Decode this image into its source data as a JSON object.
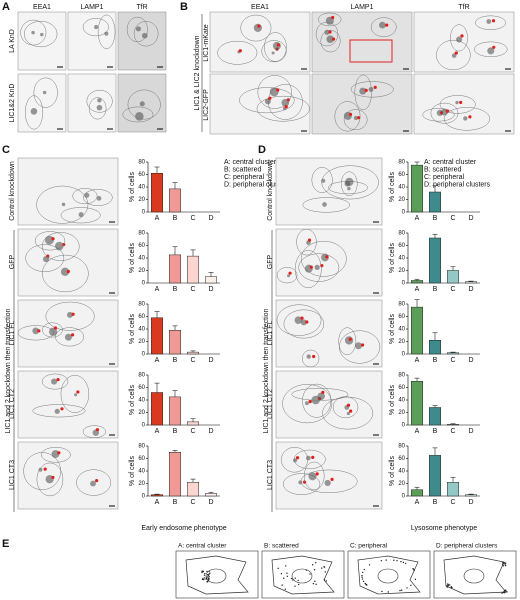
{
  "panels": {
    "a": {
      "label": "A",
      "columns": [
        "EEA1",
        "LAMP1",
        "TfR"
      ],
      "rows": [
        "LA KnD",
        "LIC1&2 KnD"
      ]
    },
    "b": {
      "label": "B",
      "columns": [
        "EEA1",
        "LAMP1",
        "TfR"
      ],
      "rows": [
        "LIC1-mKate",
        "LIC2-GFP"
      ],
      "group": "LIC1 & LIC2 knockdown"
    },
    "c": {
      "label": "C",
      "rows": [
        "Control knockdown",
        "GFP",
        "LIC1 FL",
        "LIC1 CT2",
        "LIC1 CT3"
      ],
      "group": "LIC1 and 2 knockdown then transfection",
      "legend": [
        "A: central cluster",
        "B: scattered",
        "C: peripheral",
        "D: peripheral clusters"
      ],
      "xlabel": "Early endosome phenotype"
    },
    "d": {
      "label": "D",
      "rows": [
        "Control knockdown",
        "GFP",
        "LIC1 FL",
        "LIC1 CT2",
        "LIC1 CT3"
      ],
      "group": "LIC1 and 2 knockdown then transfection",
      "legend": [
        "A: central cluster",
        "B: scattered",
        "C: peripheral",
        "D: peripheral clusters"
      ],
      "xlabel": "Lysosome phenotype"
    },
    "e": {
      "label": "E",
      "items": [
        "A: central cluster",
        "B: scattered",
        "C: peripheral",
        "D: peripheral clusters"
      ]
    }
  },
  "chart_data": [
    {
      "type": "bar",
      "ylabel": "% of cells",
      "categories": [
        "A",
        "B",
        "C",
        "D"
      ],
      "values": [
        62,
        37,
        0,
        0
      ],
      "errors": [
        10,
        10,
        0,
        0
      ],
      "colors": [
        "#d93a1f",
        "#ef9a96",
        "#fbd5d0",
        "#fdeeea"
      ],
      "ylim": [
        0,
        80
      ],
      "yticks": [
        0,
        20,
        40,
        60,
        80
      ]
    },
    {
      "type": "bar",
      "ylabel": "% of cells",
      "categories": [
        "A",
        "B",
        "C",
        "D"
      ],
      "values": [
        0,
        45,
        43,
        10
      ],
      "errors": [
        0,
        13,
        10,
        7
      ],
      "colors": [
        "#d93a1f",
        "#ef9a96",
        "#fbd5d0",
        "#fdeeea"
      ],
      "ylim": [
        0,
        80
      ],
      "yticks": [
        0,
        20,
        40,
        60,
        80
      ]
    },
    {
      "type": "bar",
      "ylabel": "% of cells",
      "categories": [
        "A",
        "B",
        "C",
        "D"
      ],
      "values": [
        58,
        38,
        3,
        0
      ],
      "errors": [
        10,
        7,
        2,
        0
      ],
      "colors": [
        "#d93a1f",
        "#ef9a96",
        "#fbd5d0",
        "#fdeeea"
      ],
      "ylim": [
        0,
        80
      ],
      "yticks": [
        0,
        20,
        40,
        60,
        80
      ]
    },
    {
      "type": "bar",
      "ylabel": "% of cells",
      "categories": [
        "A",
        "B",
        "C",
        "D"
      ],
      "values": [
        52,
        45,
        5,
        0
      ],
      "errors": [
        15,
        10,
        5,
        0
      ],
      "colors": [
        "#d93a1f",
        "#ef9a96",
        "#fbd5d0",
        "#fdeeea"
      ],
      "ylim": [
        0,
        80
      ],
      "yticks": [
        0,
        20,
        40,
        60,
        80
      ]
    },
    {
      "type": "bar",
      "ylabel": "% of cells",
      "categories": [
        "A",
        "B",
        "C",
        "D"
      ],
      "values": [
        2,
        70,
        22,
        4
      ],
      "errors": [
        1,
        3,
        5,
        2
      ],
      "colors": [
        "#d93a1f",
        "#ef9a96",
        "#fbd5d0",
        "#fdeeea"
      ],
      "ylim": [
        0,
        80
      ],
      "yticks": [
        0,
        20,
        40,
        60,
        80
      ]
    },
    {
      "type": "bar",
      "ylabel": "% of cells",
      "categories": [
        "A",
        "B",
        "C",
        "D"
      ],
      "values": [
        75,
        32,
        0,
        0
      ],
      "errors": [
        5,
        10,
        0,
        0
      ],
      "colors": [
        "#5a9e57",
        "#3f8a8c",
        "#93c8c6",
        "#d4ecea"
      ],
      "ylim": [
        0,
        80
      ],
      "yticks": [
        0,
        20,
        40,
        60,
        80
      ]
    },
    {
      "type": "bar",
      "ylabel": "% of cells",
      "categories": [
        "A",
        "B",
        "C",
        "D"
      ],
      "values": [
        4,
        72,
        20,
        2
      ],
      "errors": [
        2,
        6,
        6,
        1
      ],
      "colors": [
        "#5a9e57",
        "#3f8a8c",
        "#93c8c6",
        "#d4ecea"
      ],
      "ylim": [
        0,
        80
      ],
      "yticks": [
        0,
        20,
        40,
        60,
        80
      ]
    },
    {
      "type": "bar",
      "ylabel": "% of cells",
      "categories": [
        "A",
        "B",
        "C",
        "D"
      ],
      "values": [
        75,
        22,
        2,
        0
      ],
      "errors": [
        12,
        12,
        1,
        0
      ],
      "colors": [
        "#5a9e57",
        "#3f8a8c",
        "#93c8c6",
        "#d4ecea"
      ],
      "ylim": [
        0,
        80
      ],
      "yticks": [
        0,
        20,
        40,
        60,
        80
      ]
    },
    {
      "type": "bar",
      "ylabel": "% of cells",
      "categories": [
        "A",
        "B",
        "C",
        "D"
      ],
      "values": [
        70,
        28,
        1,
        0
      ],
      "errors": [
        5,
        3,
        1,
        0
      ],
      "colors": [
        "#5a9e57",
        "#3f8a8c",
        "#93c8c6",
        "#d4ecea"
      ],
      "ylim": [
        0,
        80
      ],
      "yticks": [
        0,
        20,
        40,
        60,
        80
      ]
    },
    {
      "type": "bar",
      "ylabel": "% of cells",
      "categories": [
        "A",
        "B",
        "C",
        "D"
      ],
      "values": [
        10,
        65,
        22,
        2
      ],
      "errors": [
        4,
        12,
        8,
        1
      ],
      "colors": [
        "#5a9e57",
        "#3f8a8c",
        "#93c8c6",
        "#d4ecea"
      ],
      "ylim": [
        0,
        80
      ],
      "yticks": [
        0,
        20,
        40,
        60,
        80
      ]
    }
  ]
}
